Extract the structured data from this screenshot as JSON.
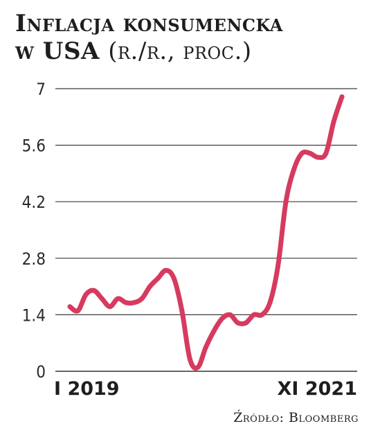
{
  "chart_data": {
    "type": "line",
    "title_line1": "Inflacja konsumencka",
    "title_line2_main": "w USA",
    "title_line2_sub": "(r./r., proc.)",
    "source": "Źródło: Bloomberg",
    "x_first_label": "I 2019",
    "x_last_label": "XI 2021",
    "ylim": [
      0,
      7
    ],
    "yticks": [
      "0",
      "1.4",
      "2.8",
      "4.2",
      "5.6",
      "7"
    ],
    "grid": true,
    "line_color": "#d63b5f",
    "series": [
      {
        "values": [
          1.6,
          1.5,
          1.9,
          2.0,
          1.8,
          1.6,
          1.8,
          1.7,
          1.7,
          1.8,
          2.1,
          2.3,
          2.5,
          2.3,
          1.5,
          0.3,
          0.1,
          0.6,
          1.0,
          1.3,
          1.4,
          1.2,
          1.2,
          1.4,
          1.4,
          1.7,
          2.6,
          4.2,
          5.0,
          5.4,
          5.4,
          5.3,
          5.4,
          6.2,
          6.8
        ]
      }
    ]
  }
}
